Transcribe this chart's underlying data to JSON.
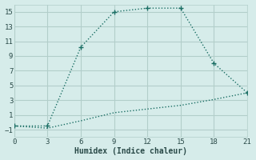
{
  "line1_x": [
    0,
    3,
    6,
    9,
    12,
    15,
    18,
    21
  ],
  "line1_y": [
    -0.5,
    -0.5,
    10.2,
    15.0,
    15.5,
    15.5,
    8.0,
    4.0
  ],
  "line2_x": [
    0,
    3,
    6,
    9,
    12,
    15,
    18,
    21
  ],
  "line2_y": [
    -0.5,
    -0.8,
    0.2,
    1.3,
    1.8,
    2.3,
    3.1,
    4.0
  ],
  "line_color": "#1a6e64",
  "bg_color": "#d6ecea",
  "grid_color": "#b2ceca",
  "xlabel": "Humidex (Indice chaleur)",
  "xlim": [
    0,
    21
  ],
  "ylim": [
    -2,
    16
  ],
  "xticks": [
    0,
    3,
    6,
    9,
    12,
    15,
    18,
    21
  ],
  "yticks": [
    -1,
    1,
    3,
    5,
    7,
    9,
    11,
    13,
    15
  ],
  "font_color": "#2a4a48",
  "marker": "+",
  "marker_size": 5,
  "linewidth": 1.0
}
